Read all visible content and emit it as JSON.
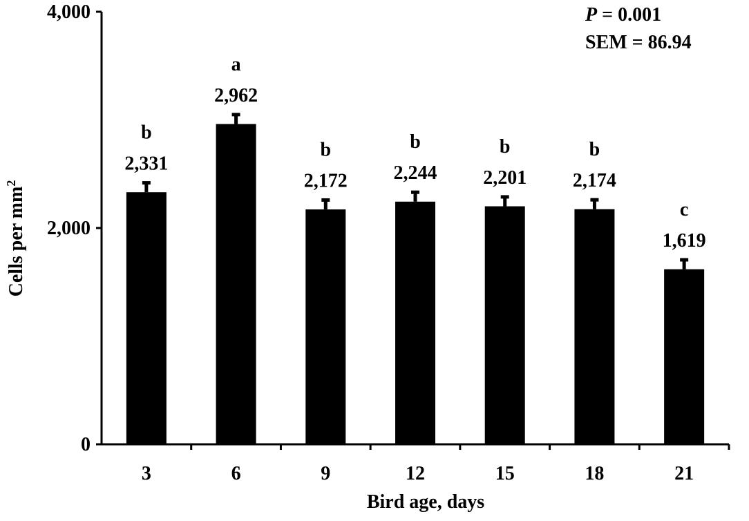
{
  "chart_data": {
    "type": "bar",
    "xlabel": "Bird age, days",
    "ylabel": "Cells per mm",
    "ylabel_superscript": "2",
    "ylim": [
      0,
      4000
    ],
    "yticks": [
      0,
      2000,
      4000
    ],
    "ytick_labels": [
      "0",
      "2,000",
      "4,000"
    ],
    "categories": [
      "3",
      "6",
      "9",
      "12",
      "15",
      "18",
      "21"
    ],
    "values": [
      2331,
      2962,
      2172,
      2244,
      2201,
      2174,
      1619
    ],
    "value_labels": [
      "2,331",
      "2,962",
      "2,172",
      "2,244",
      "2,201",
      "2,174",
      "1,619"
    ],
    "significance_letters": [
      "b",
      "a",
      "b",
      "b",
      "b",
      "b",
      "c"
    ],
    "error_bar": 86.94,
    "bar_color": "#000000",
    "annotations": {
      "p_symbol": "P",
      "p_value": " = 0.001",
      "sem": "SEM = 86.94"
    }
  }
}
